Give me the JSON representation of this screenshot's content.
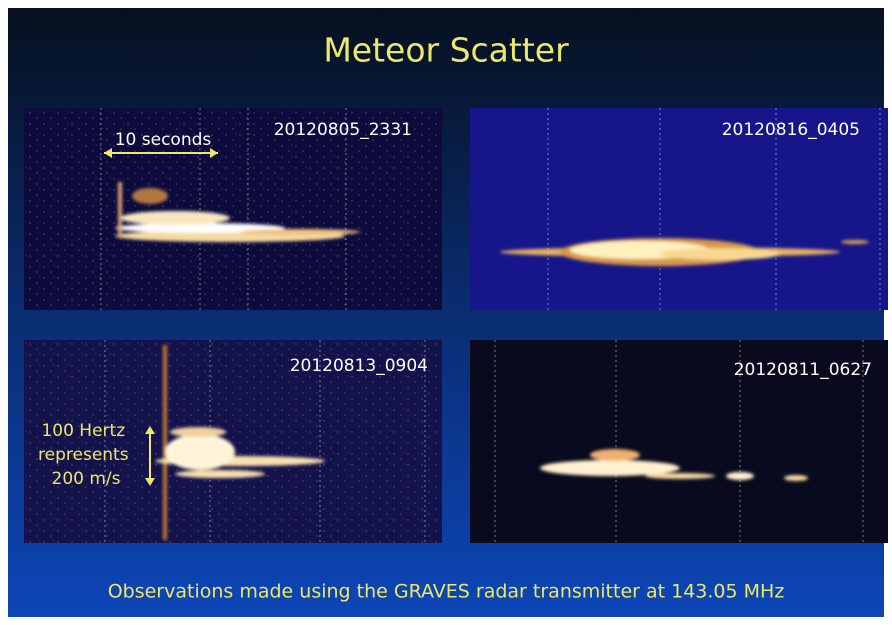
{
  "header": {
    "title": "Meteor Scatter"
  },
  "panels": [
    {
      "label": "20120805_2331",
      "annotation": "10 seconds"
    },
    {
      "label": "20120816_0405"
    },
    {
      "label": "20120813_0904",
      "annotation_lines": [
        "100 Hertz",
        "represents",
        "200 m/s"
      ]
    },
    {
      "label": "20120811_0627"
    }
  ],
  "caption": "Observations made using the GRAVES radar transmitter at 143.05 MHz"
}
